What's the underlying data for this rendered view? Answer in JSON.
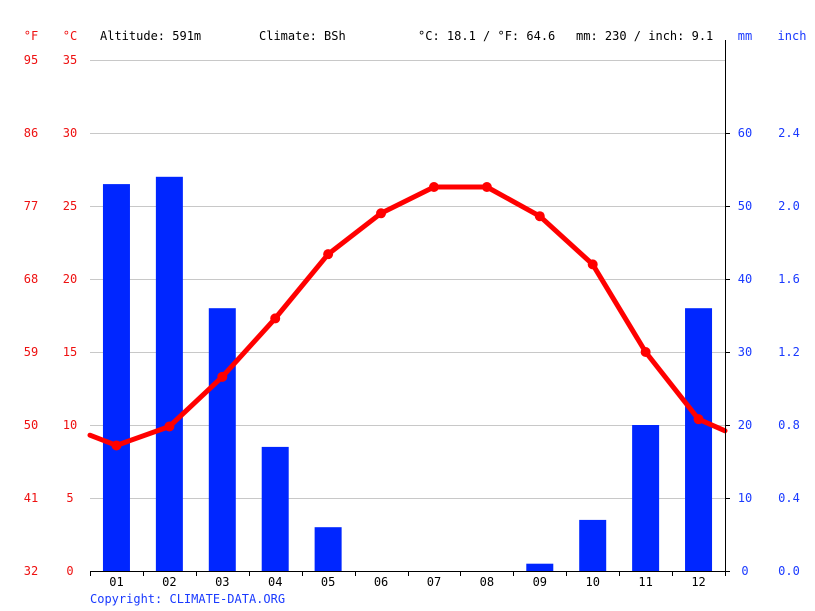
{
  "header": {
    "unit_f": "°F",
    "unit_c": "°C",
    "altitude": "Altitude: 591m",
    "climate": "Climate: BSh",
    "temperature_avg": "°C: 18.1 / °F: 64.6",
    "precipitation_total": "mm: 230 / inch: 9.1",
    "unit_mm": "mm",
    "unit_inch": "inch"
  },
  "footer": {
    "copyright": "Copyright: CLIMATE-DATA.ORG"
  },
  "colors": {
    "temperature": "#ff0000",
    "precipitation": "#0026ff",
    "label_red": "#ee1111",
    "label_blue": "#1a3aff"
  },
  "chart_data": {
    "type": "bar",
    "categories": [
      "01",
      "02",
      "03",
      "04",
      "05",
      "06",
      "07",
      "08",
      "09",
      "10",
      "11",
      "12"
    ],
    "series": [
      {
        "type": "bar",
        "axis": "right",
        "values": [
          53,
          54,
          36,
          17,
          6,
          0,
          0,
          0,
          1,
          7,
          20,
          36
        ]
      },
      {
        "type": "line",
        "axis": "left",
        "values": [
          8.6,
          9.9,
          13.3,
          17.3,
          21.7,
          24.5,
          26.3,
          26.3,
          24.3,
          21.0,
          15.0,
          10.4
        ]
      }
    ],
    "temp_edge_values": [
      9.3,
      9.6
    ],
    "left_axis_c": {
      "ylim": [
        0,
        35
      ],
      "ticks": [
        "0",
        "5",
        "10",
        "15",
        "20",
        "25",
        "30",
        "35"
      ]
    },
    "left_axis_f": {
      "ticks": [
        "32",
        "41",
        "50",
        "59",
        "68",
        "77",
        "86",
        "95"
      ]
    },
    "right_axis_mm": {
      "ylim": [
        0,
        70
      ],
      "ticks": [
        "0",
        "10",
        "20",
        "30",
        "40",
        "50",
        "60"
      ]
    },
    "right_axis_inch": {
      "ticks": [
        "0.0",
        "0.4",
        "0.8",
        "1.2",
        "1.6",
        "2.0",
        "2.4"
      ]
    },
    "grid": true
  }
}
